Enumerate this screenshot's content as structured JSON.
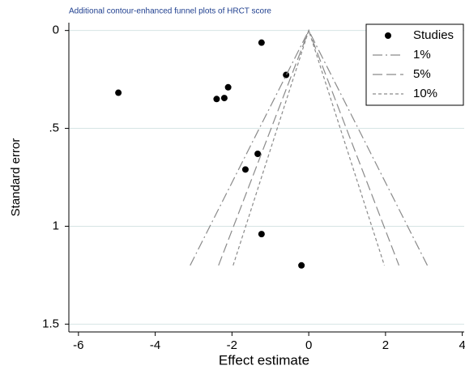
{
  "chart_data": {
    "type": "funnel",
    "title": "Additional contour-enhanced funnel plots of HRCT score",
    "xlabel": "Effect estimate",
    "ylabel": "Standard error",
    "xlim": [
      -6.25,
      4.05
    ],
    "ylim": [
      -0.04,
      1.54
    ],
    "y_inverted": true,
    "xticks": [
      -6,
      -4,
      -2,
      0,
      2,
      4
    ],
    "yticks": [
      0,
      {
        "value": 0.5,
        "label": ".5"
      },
      1,
      1.5
    ],
    "grid": true,
    "legend": "top-right",
    "series": [
      {
        "name": "Studies",
        "mode": "markers",
        "color": "#000000",
        "x": [
          -1.23,
          -0.59,
          -4.96,
          -2.1,
          -2.4,
          -2.2,
          -1.33,
          -1.65,
          -1.23,
          -0.19
        ],
        "y": [
          0.062,
          0.227,
          0.318,
          0.29,
          0.35,
          0.345,
          0.63,
          0.71,
          1.04,
          1.2
        ]
      },
      {
        "name": "1%",
        "mode": "line",
        "color": "#8a8a8a",
        "dash": "12 4 2 4",
        "x": [
          -3.09,
          0,
          3.09
        ],
        "y": [
          1.2,
          0,
          1.2
        ]
      },
      {
        "name": "5%",
        "mode": "line",
        "color": "#8a8a8a",
        "dash": "12 5",
        "x": [
          -2.35,
          0,
          2.35
        ],
        "y": [
          1.2,
          0,
          1.2
        ]
      },
      {
        "name": "10%",
        "mode": "line",
        "color": "#8a8a8a",
        "dash": "4 3",
        "x": [
          -1.97,
          0,
          1.97
        ],
        "y": [
          1.2,
          0,
          1.2
        ]
      }
    ]
  }
}
